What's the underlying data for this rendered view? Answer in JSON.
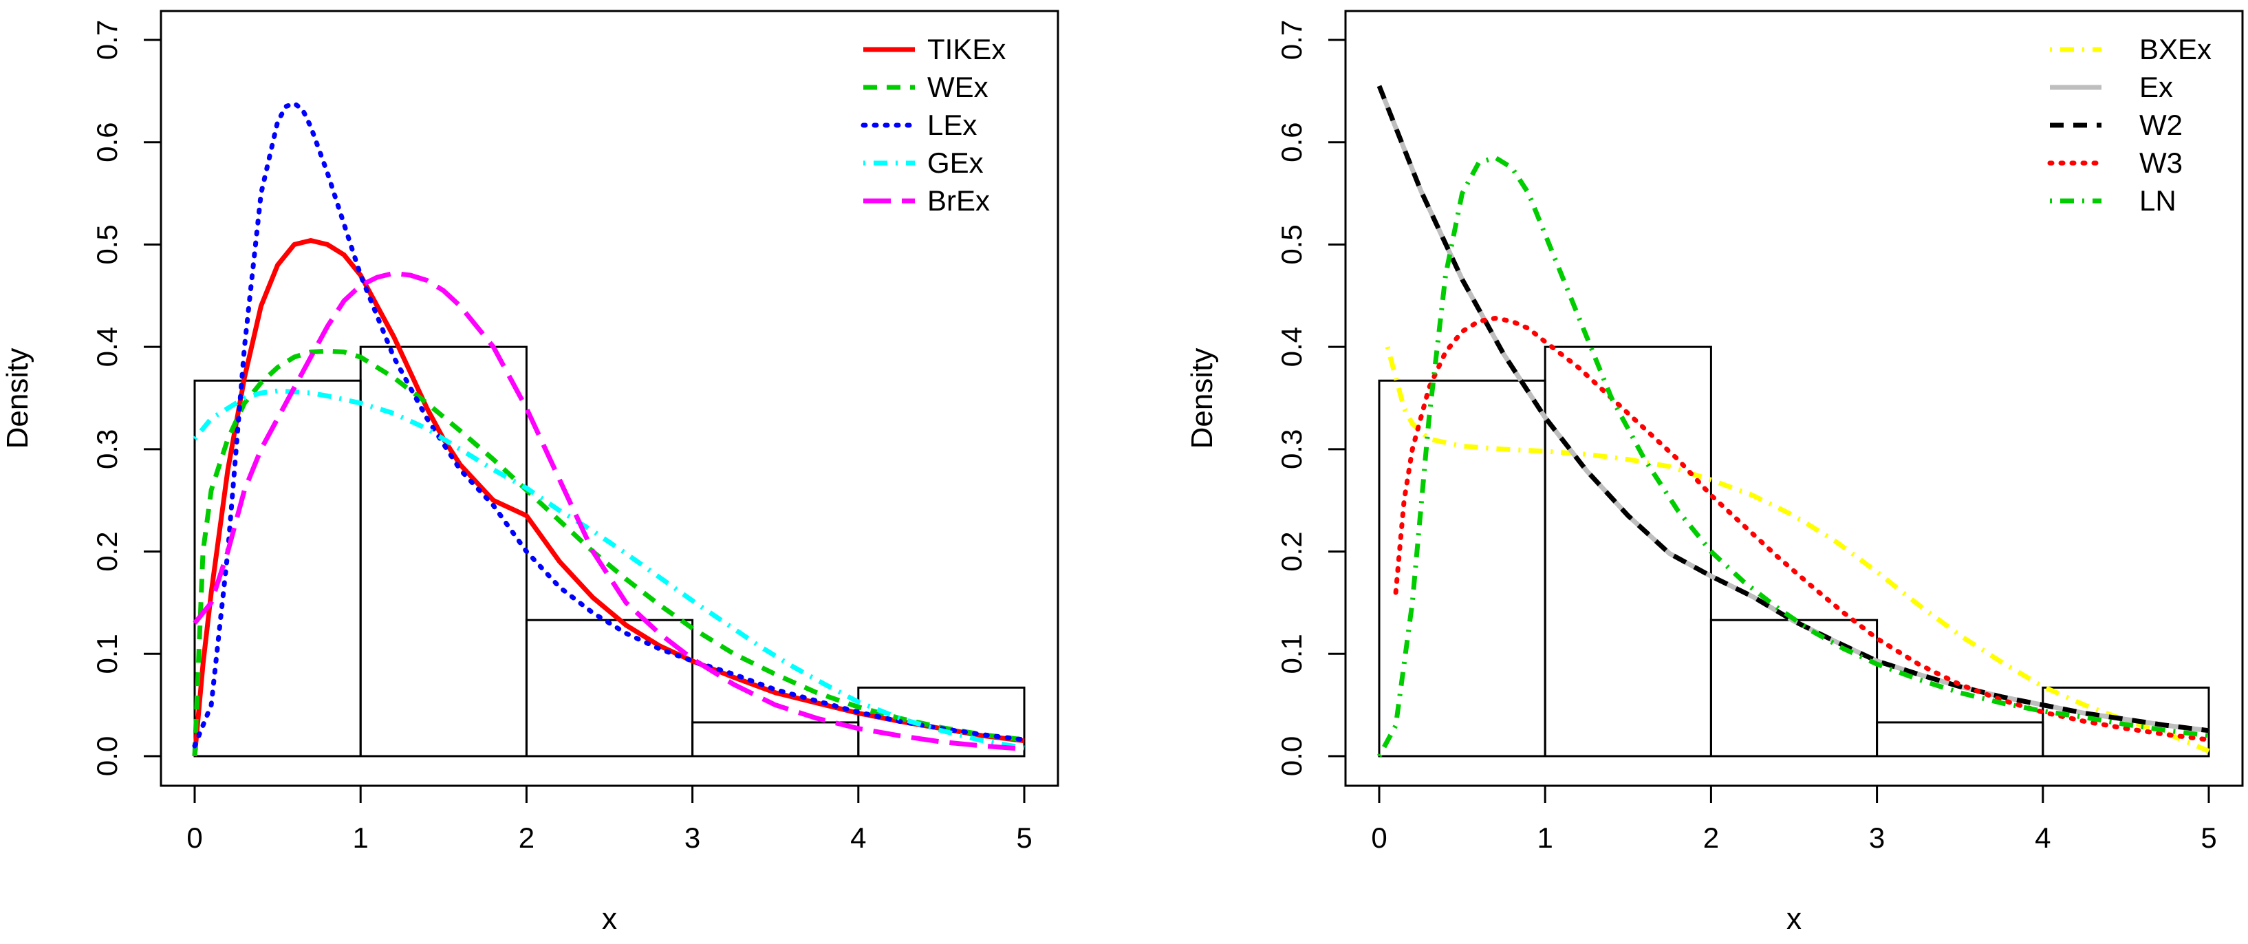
{
  "chart_data": [
    {
      "type": "histogram",
      "xlabel": "x",
      "ylabel": "Density",
      "xlim": [
        0,
        5
      ],
      "ylim": [
        0,
        0.7
      ],
      "xticks": [
        "0",
        "1",
        "2",
        "3",
        "4",
        "5"
      ],
      "yticks": [
        "0.0",
        "0.1",
        "0.2",
        "0.3",
        "0.4",
        "0.5",
        "0.6",
        "0.7"
      ],
      "legend_position": "top-right",
      "histogram": {
        "bins": [
          [
            0,
            1
          ],
          [
            1,
            2
          ],
          [
            2,
            3
          ],
          [
            3,
            4
          ],
          [
            4,
            5
          ]
        ],
        "values": [
          0.367,
          0.4,
          0.133,
          0.033,
          0.067
        ]
      },
      "series": [
        {
          "name": "TIKEx",
          "color": "#ff0000",
          "dash": "solid",
          "x": [
            0,
            0.05,
            0.1,
            0.2,
            0.3,
            0.4,
            0.5,
            0.6,
            0.7,
            0.8,
            0.9,
            1,
            1.1,
            1.2,
            1.3,
            1.4,
            1.5,
            1.6,
            1.8,
            2,
            2.2,
            2.4,
            2.6,
            2.8,
            3,
            3.25,
            3.5,
            3.75,
            4,
            4.25,
            4.5,
            4.75,
            5
          ],
          "y": [
            0,
            0.09,
            0.16,
            0.28,
            0.37,
            0.44,
            0.48,
            0.5,
            0.504,
            0.5,
            0.49,
            0.47,
            0.44,
            0.41,
            0.375,
            0.34,
            0.31,
            0.285,
            0.25,
            0.235,
            0.19,
            0.155,
            0.128,
            0.108,
            0.093,
            0.077,
            0.062,
            0.052,
            0.042,
            0.034,
            0.027,
            0.02,
            0.015
          ]
        },
        {
          "name": "WEx",
          "color": "#00cd00",
          "dash": "dashed",
          "x": [
            0,
            0.05,
            0.1,
            0.2,
            0.3,
            0.4,
            0.5,
            0.6,
            0.7,
            0.8,
            0.9,
            1,
            1.2,
            1.4,
            1.6,
            1.8,
            2,
            2.2,
            2.4,
            2.6,
            2.8,
            3,
            3.25,
            3.5,
            3.75,
            4,
            4.25,
            4.5,
            4.75,
            5
          ],
          "y": [
            0,
            0.2,
            0.26,
            0.31,
            0.345,
            0.365,
            0.38,
            0.39,
            0.395,
            0.396,
            0.395,
            0.39,
            0.37,
            0.345,
            0.318,
            0.29,
            0.26,
            0.23,
            0.2,
            0.173,
            0.148,
            0.125,
            0.1,
            0.08,
            0.062,
            0.048,
            0.037,
            0.028,
            0.021,
            0.016
          ]
        },
        {
          "name": "LEx",
          "color": "#0000ff",
          "dash": "dotted",
          "x": [
            0,
            0.1,
            0.2,
            0.3,
            0.4,
            0.5,
            0.55,
            0.6,
            0.65,
            0.7,
            0.8,
            0.9,
            1,
            1.1,
            1.2,
            1.4,
            1.6,
            1.8,
            2,
            2.2,
            2.4,
            2.6,
            2.8,
            3,
            3.25,
            3.5,
            3.75,
            4,
            4.25,
            4.5,
            4.75,
            5
          ],
          "y": [
            0.01,
            0.05,
            0.2,
            0.4,
            0.55,
            0.62,
            0.635,
            0.638,
            0.632,
            0.615,
            0.57,
            0.52,
            0.47,
            0.43,
            0.39,
            0.33,
            0.28,
            0.245,
            0.2,
            0.165,
            0.14,
            0.12,
            0.105,
            0.093,
            0.08,
            0.065,
            0.054,
            0.043,
            0.034,
            0.027,
            0.021,
            0.016
          ]
        },
        {
          "name": "GEx",
          "color": "#00ffff",
          "dash": "dotdash",
          "x": [
            0,
            0.1,
            0.2,
            0.3,
            0.4,
            0.5,
            0.6,
            0.7,
            0.8,
            1,
            1.2,
            1.4,
            1.6,
            1.8,
            2,
            2.2,
            2.4,
            2.6,
            2.8,
            3,
            3.2,
            3.4,
            3.6,
            3.8,
            4,
            4.25,
            4.5,
            4.75,
            5
          ],
          "y": [
            0.31,
            0.33,
            0.34,
            0.35,
            0.355,
            0.357,
            0.356,
            0.355,
            0.352,
            0.345,
            0.335,
            0.32,
            0.3,
            0.28,
            0.262,
            0.24,
            0.22,
            0.198,
            0.175,
            0.152,
            0.13,
            0.108,
            0.088,
            0.07,
            0.053,
            0.037,
            0.025,
            0.015,
            0.008
          ]
        },
        {
          "name": "BrEx",
          "color": "#ff00ff",
          "dash": "longdash",
          "x": [
            0,
            0.1,
            0.2,
            0.3,
            0.4,
            0.5,
            0.6,
            0.7,
            0.8,
            0.9,
            1,
            1.1,
            1.2,
            1.3,
            1.4,
            1.5,
            1.6,
            1.8,
            2,
            2.2,
            2.4,
            2.6,
            2.8,
            3,
            3.25,
            3.5,
            3.75,
            4,
            4.25,
            4.5,
            4.75,
            5
          ],
          "y": [
            0.13,
            0.15,
            0.2,
            0.26,
            0.3,
            0.33,
            0.36,
            0.39,
            0.42,
            0.445,
            0.46,
            0.468,
            0.472,
            0.47,
            0.465,
            0.455,
            0.44,
            0.4,
            0.34,
            0.27,
            0.2,
            0.15,
            0.12,
            0.095,
            0.07,
            0.05,
            0.037,
            0.027,
            0.02,
            0.014,
            0.01,
            0.007
          ]
        }
      ]
    },
    {
      "type": "histogram",
      "xlabel": "x",
      "ylabel": "Density",
      "xlim": [
        0,
        5
      ],
      "ylim": [
        0,
        0.7
      ],
      "xticks": [
        "0",
        "1",
        "2",
        "3",
        "4",
        "5"
      ],
      "yticks": [
        "0.0",
        "0.1",
        "0.2",
        "0.3",
        "0.4",
        "0.5",
        "0.6",
        "0.7"
      ],
      "legend_position": "top-right",
      "histogram": {
        "bins": [
          [
            0,
            1
          ],
          [
            1,
            2
          ],
          [
            2,
            3
          ],
          [
            3,
            4
          ],
          [
            4,
            5
          ]
        ],
        "values": [
          0.367,
          0.4,
          0.133,
          0.033,
          0.067
        ]
      },
      "series": [
        {
          "name": "BXEx",
          "color": "#ffff00",
          "dash": "dotdash",
          "x": [
            0.05,
            0.1,
            0.15,
            0.2,
            0.3,
            0.5,
            0.75,
            1,
            1.25,
            1.5,
            1.75,
            2,
            2.25,
            2.5,
            2.75,
            3,
            3.25,
            3.5,
            3.75,
            4,
            4.25,
            4.5,
            4.75,
            5
          ],
          "y": [
            0.4,
            0.37,
            0.34,
            0.325,
            0.31,
            0.303,
            0.3,
            0.298,
            0.295,
            0.29,
            0.283,
            0.27,
            0.255,
            0.235,
            0.21,
            0.18,
            0.148,
            0.118,
            0.092,
            0.068,
            0.05,
            0.035,
            0.022,
            0.005
          ]
        },
        {
          "name": "Ex",
          "color": "#bebebe",
          "dash": "solid",
          "x": [
            0,
            0.25,
            0.5,
            0.75,
            1,
            1.25,
            1.5,
            1.75,
            2,
            2.25,
            2.5,
            2.75,
            3,
            3.25,
            3.5,
            3.75,
            4,
            4.25,
            4.5,
            4.75,
            5
          ],
          "y": [
            0.655,
            0.553,
            0.466,
            0.393,
            0.331,
            0.279,
            0.235,
            0.198,
            0.176,
            0.156,
            0.132,
            0.112,
            0.093,
            0.08,
            0.068,
            0.058,
            0.05,
            0.042,
            0.036,
            0.03,
            0.025
          ]
        },
        {
          "name": "W2",
          "color": "#000000",
          "dash": "dashed",
          "x": [
            0,
            0.25,
            0.5,
            0.75,
            1,
            1.25,
            1.5,
            1.75,
            2,
            2.25,
            2.5,
            2.75,
            3,
            3.25,
            3.5,
            3.75,
            4,
            4.25,
            4.5,
            4.75,
            5
          ],
          "y": [
            0.655,
            0.553,
            0.466,
            0.393,
            0.331,
            0.279,
            0.235,
            0.198,
            0.176,
            0.156,
            0.132,
            0.112,
            0.093,
            0.08,
            0.068,
            0.058,
            0.05,
            0.042,
            0.036,
            0.03,
            0.025
          ]
        },
        {
          "name": "W3",
          "color": "#ff0000",
          "dash": "dotted",
          "x": [
            0.1,
            0.15,
            0.2,
            0.3,
            0.4,
            0.5,
            0.6,
            0.7,
            0.8,
            0.9,
            1,
            1.2,
            1.4,
            1.6,
            1.8,
            2,
            2.2,
            2.4,
            2.6,
            2.8,
            3,
            3.25,
            3.5,
            3.75,
            4,
            4.25,
            4.5,
            4.75,
            5
          ],
          "y": [
            0.16,
            0.25,
            0.3,
            0.36,
            0.395,
            0.415,
            0.425,
            0.428,
            0.425,
            0.418,
            0.405,
            0.38,
            0.35,
            0.32,
            0.29,
            0.255,
            0.225,
            0.195,
            0.167,
            0.14,
            0.115,
            0.09,
            0.07,
            0.055,
            0.043,
            0.034,
            0.027,
            0.021,
            0.016
          ]
        },
        {
          "name": "LN",
          "color": "#00cd00",
          "dash": "dotdash",
          "x": [
            0,
            0.1,
            0.2,
            0.3,
            0.4,
            0.5,
            0.6,
            0.7,
            0.8,
            0.9,
            1,
            1.1,
            1.2,
            1.4,
            1.6,
            1.8,
            2,
            2.2,
            2.4,
            2.6,
            2.8,
            3,
            3.25,
            3.5,
            3.75,
            4,
            4.25,
            4.5,
            4.75,
            5
          ],
          "y": [
            0,
            0.03,
            0.15,
            0.33,
            0.47,
            0.55,
            0.58,
            0.585,
            0.575,
            0.55,
            0.51,
            0.47,
            0.43,
            0.35,
            0.29,
            0.24,
            0.2,
            0.17,
            0.145,
            0.123,
            0.105,
            0.09,
            0.075,
            0.062,
            0.052,
            0.044,
            0.038,
            0.031,
            0.025,
            0.02
          ]
        }
      ]
    }
  ]
}
